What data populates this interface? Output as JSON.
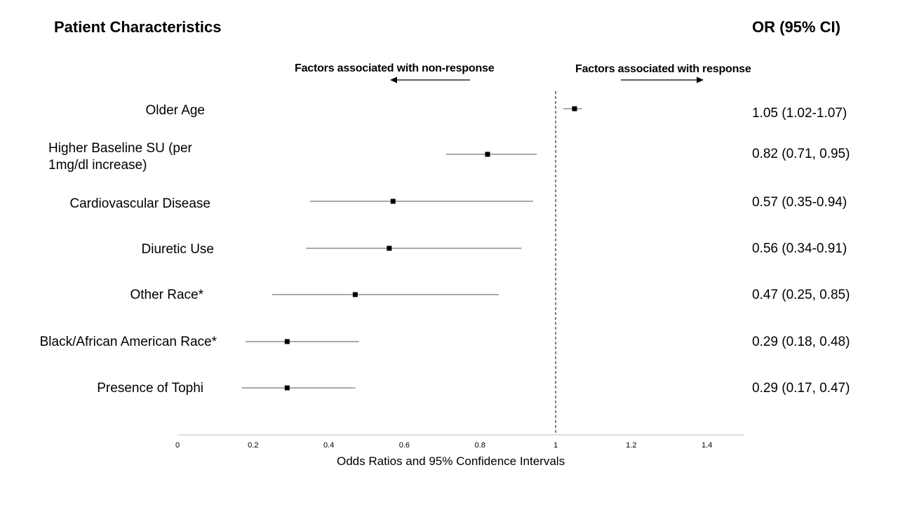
{
  "headers": {
    "left": "Patient Characteristics",
    "right": "OR (95% CI)"
  },
  "direction_labels": {
    "non_response": "Factors associated with non-response",
    "response": "Factors associated with response"
  },
  "chart_data": {
    "type": "forest",
    "xlabel": "Odds Ratios and 95% Confidence Intervals",
    "xlim": [
      0,
      1.5
    ],
    "xticks": [
      "0",
      "0.2",
      "0.4",
      "0.6",
      "0.8",
      "1",
      "1.2",
      "1.4"
    ],
    "reference_line": 1,
    "rows": [
      {
        "label": "Older Age",
        "or": 1.05,
        "low": 1.02,
        "high": 1.07,
        "text": "1.05 (1.02-1.07)"
      },
      {
        "label": "Higher Baseline SU (per 1mg/dl  increase)",
        "or": 0.82,
        "low": 0.71,
        "high": 0.95,
        "text": "0.82 (0.71, 0.95)"
      },
      {
        "label": "Cardiovascular Disease",
        "or": 0.57,
        "low": 0.35,
        "high": 0.94,
        "text": "0.57 (0.35-0.94)"
      },
      {
        "label": "Diuretic Use",
        "or": 0.56,
        "low": 0.34,
        "high": 0.91,
        "text": "0.56 (0.34-0.91)"
      },
      {
        "label": "Other Race*",
        "or": 0.47,
        "low": 0.25,
        "high": 0.85,
        "text": "0.47 (0.25, 0.85)"
      },
      {
        "label": "Black/African American Race*",
        "or": 0.29,
        "low": 0.18,
        "high": 0.48,
        "text": "0.29 (0.18, 0.48)"
      },
      {
        "label": "Presence of Tophi",
        "or": 0.29,
        "low": 0.17,
        "high": 0.47,
        "text": "0.29 (0.17, 0.47)"
      }
    ]
  }
}
